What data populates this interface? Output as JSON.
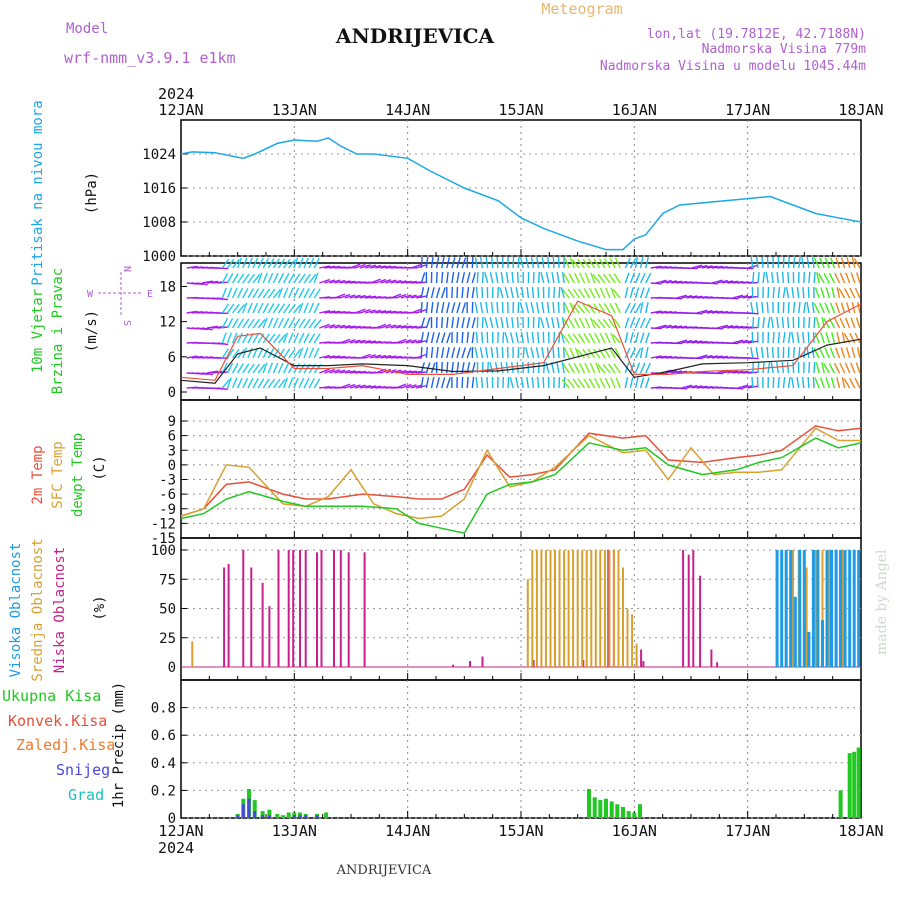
{
  "header": {
    "model_label": "Model",
    "model_name": "wrf-nmm_v3.9.1 e1km",
    "title": "ANDRIJEVICA",
    "subtitle": "Meteogram",
    "coords": "lon,lat (19.7812E, 42.7188N)",
    "elevation": "Nadmorska Visina 779m",
    "model_elevation": "Nadmorska Visina u modelu 1045.44m",
    "footer_station": "ANDRIJEVICA",
    "watermark": "made by Angel"
  },
  "time_axis": {
    "year": "2024",
    "ticks": [
      "12JAN",
      "13JAN",
      "14JAN",
      "15JAN",
      "16JAN",
      "17JAN",
      "18JAN"
    ]
  },
  "colors": {
    "pressure": "#1ea7e6",
    "wind_speed": "#222222",
    "wind_gust": "#e8503a",
    "temp_2m": "#e8503a",
    "temp_sfc": "#d9a030",
    "dewpoint": "#22c822",
    "cloud_high": "#1e9be6",
    "cloud_mid": "#d9a030",
    "cloud_low": "#c8208a",
    "precip_total": "#22c822",
    "precip_conv": "#e8503a",
    "precip_frz": "#f07a2a",
    "snow": "#4848e0",
    "graupel": "#20c0c0"
  },
  "chart_data": [
    {
      "type": "line",
      "panel": "pressure",
      "label_main": "Pritisak na nivou mora",
      "ylabel": "(hPa)",
      "ylim": [
        1000,
        1032
      ],
      "yticks": [
        1000,
        1008,
        1016,
        1024
      ],
      "grid": true,
      "series": [
        {
          "name": "Pritisak na nivou mora",
          "x": [
            0,
            0.1,
            0.3,
            0.55,
            0.65,
            0.85,
            1.0,
            1.2,
            1.3,
            1.4,
            1.55,
            1.7,
            2.0,
            2.2,
            2.5,
            2.8,
            3.0,
            3.2,
            3.5,
            3.75,
            3.9,
            4.0,
            4.1,
            4.25,
            4.4,
            4.6,
            4.8,
            5.0,
            5.2,
            5.4,
            5.6,
            5.8,
            6.0
          ],
          "y": [
            1024,
            1024.5,
            1024.3,
            1023,
            1024,
            1026.5,
            1027.3,
            1027,
            1027.8,
            1026,
            1024,
            1024,
            1023,
            1020,
            1016,
            1013,
            1009,
            1006.5,
            1003.5,
            1001.5,
            1001.5,
            1004,
            1005,
            1010,
            1012,
            1012.5,
            1013,
            1013.5,
            1014,
            1012,
            1010,
            1009,
            1008
          ]
        }
      ]
    },
    {
      "type": "line",
      "panel": "wind",
      "label_main": "10m Vjetar",
      "label_sub": "Brzina i Pravac",
      "ylabel": "(m/s)",
      "ylim": [
        0,
        22
      ],
      "yticks": [
        0,
        6,
        12,
        18
      ],
      "legend": "compass",
      "compass": {
        "n": "N",
        "e": "E",
        "s": "S",
        "w": "W"
      },
      "series": [
        {
          "name": "speed",
          "x": [
            0,
            0.3,
            0.5,
            0.7,
            1.0,
            1.3,
            1.6,
            2.0,
            2.4,
            2.8,
            3.2,
            3.5,
            3.8,
            4.0,
            4.3,
            4.6,
            5.0,
            5.4,
            5.7,
            6.0
          ],
          "y": [
            2,
            1.5,
            6.5,
            7.5,
            4.5,
            4.5,
            4.8,
            4.5,
            3.5,
            3.6,
            4.5,
            6,
            7.5,
            2.5,
            3.5,
            4.8,
            5,
            5.4,
            8,
            9
          ]
        },
        {
          "name": "gust",
          "x": [
            0,
            0.3,
            0.5,
            0.7,
            1.0,
            1.3,
            1.6,
            2.0,
            2.4,
            2.8,
            3.2,
            3.5,
            3.8,
            4.0,
            4.3,
            4.6,
            5.0,
            5.4,
            5.7,
            6.0
          ],
          "y": [
            2.5,
            2.0,
            9.5,
            10,
            4,
            4,
            4.5,
            3,
            3,
            4,
            5,
            15.5,
            13,
            3,
            3,
            3.5,
            3.8,
            4.5,
            12,
            15
          ]
        }
      ]
    },
    {
      "type": "line",
      "panel": "temperature",
      "label_2m": "2m Temp",
      "label_sfc": "SFC Temp",
      "label_dew": "dewpt Temp",
      "ylabel": "(C)",
      "ylim": [
        -15,
        9
      ],
      "yticks": [
        -15,
        -12,
        -9,
        -6,
        -3,
        0,
        3,
        6,
        9
      ],
      "grid": true,
      "series": [
        {
          "name": "2m Temp",
          "x": [
            0,
            0.2,
            0.4,
            0.6,
            0.9,
            1.1,
            1.3,
            1.6,
            1.9,
            2.1,
            2.3,
            2.5,
            2.7,
            2.9,
            3.1,
            3.3,
            3.6,
            3.9,
            4.1,
            4.3,
            4.6,
            4.9,
            5.1,
            5.3,
            5.6,
            5.8,
            6.0
          ],
          "y": [
            -10.5,
            -9,
            -4,
            -3.5,
            -6,
            -7,
            -7,
            -6,
            -6.5,
            -7,
            -7,
            -5,
            2,
            -2.5,
            -2,
            -1,
            6.5,
            5.5,
            6,
            1,
            0.5,
            1.5,
            2,
            3,
            8,
            7,
            7.5
          ]
        },
        {
          "name": "SFC Temp",
          "x": [
            0,
            0.2,
            0.4,
            0.6,
            0.9,
            1.1,
            1.3,
            1.5,
            1.7,
            1.9,
            2.1,
            2.3,
            2.5,
            2.7,
            2.9,
            3.1,
            3.3,
            3.6,
            3.9,
            4.1,
            4.3,
            4.5,
            4.7,
            4.9,
            5.1,
            5.3,
            5.6,
            5.8,
            6.0
          ],
          "y": [
            -10.5,
            -9,
            0,
            -0.5,
            -8,
            -8.5,
            -6.5,
            -1,
            -8,
            -10,
            -11,
            -10.5,
            -7,
            3,
            -4.5,
            -3.5,
            -0.5,
            6,
            2.5,
            3,
            -3,
            3.5,
            -2,
            -1.5,
            -1.5,
            -1,
            7.5,
            5,
            5
          ]
        },
        {
          "name": "dewpt Temp",
          "x": [
            0,
            0.2,
            0.4,
            0.6,
            0.9,
            1.1,
            1.3,
            1.6,
            1.9,
            2.1,
            2.3,
            2.5,
            2.7,
            2.9,
            3.1,
            3.3,
            3.6,
            3.9,
            4.1,
            4.3,
            4.6,
            4.9,
            5.1,
            5.3,
            5.6,
            5.8,
            6.0
          ],
          "y": [
            -11,
            -10,
            -7,
            -5.5,
            -7.5,
            -8.5,
            -8.5,
            -8.5,
            -9,
            -12,
            -13,
            -14,
            -6,
            -4,
            -3.5,
            -2,
            4.5,
            3,
            3.5,
            0,
            -2,
            -1,
            0.5,
            1.5,
            5.5,
            3.5,
            4.5
          ]
        }
      ]
    },
    {
      "type": "bar",
      "panel": "clouds",
      "label_high": "Visoka Oblacnost",
      "label_mid": "Srednja Oblacnost",
      "label_low": "Niska Oblacnost",
      "ylabel": "(%)",
      "ylim": [
        0,
        100
      ],
      "yticks": [
        0,
        25,
        50,
        75,
        100
      ],
      "grid": true,
      "series": [
        {
          "name": "Niska Oblacnost",
          "x": [
            0.38,
            0.42,
            0.55,
            0.62,
            0.72,
            0.78,
            0.86,
            0.95,
            0.99,
            1.05,
            1.1,
            1.2,
            1.24,
            1.35,
            1.41,
            1.48,
            1.62,
            2.4,
            2.55,
            2.66,
            3.11,
            3.3,
            3.55,
            3.77,
            3.82,
            4.02,
            4.06,
            4.08,
            4.43,
            4.48,
            4.52,
            4.58,
            4.68,
            4.73
          ],
          "y": [
            85,
            88,
            100,
            85,
            72,
            52,
            100,
            100,
            100,
            100,
            100,
            98,
            100,
            100,
            100,
            98,
            98,
            2,
            5,
            9,
            6,
            5,
            6,
            100,
            100,
            7,
            15,
            5,
            100,
            96,
            100,
            78,
            15,
            4
          ]
        },
        {
          "name": "Srednja Oblacnost",
          "x": [
            0.1,
            3.06,
            3.1,
            3.14,
            3.18,
            3.22,
            3.26,
            3.3,
            3.34,
            3.38,
            3.42,
            3.46,
            3.5,
            3.54,
            3.58,
            3.62,
            3.66,
            3.7,
            3.74,
            3.78,
            3.82,
            3.86,
            3.9,
            3.94,
            3.98,
            4.02,
            5.3,
            5.4,
            5.45,
            5.52,
            5.6,
            5.66,
            5.72,
            5.78,
            5.84
          ],
          "y": [
            22,
            75,
            100,
            100,
            100,
            100,
            100,
            100,
            100,
            100,
            100,
            100,
            100,
            100,
            100,
            100,
            100,
            100,
            100,
            100,
            100,
            100,
            85,
            50,
            45,
            20,
            100,
            100,
            100,
            85,
            100,
            100,
            100,
            100,
            100
          ]
        },
        {
          "name": "Visoka Oblacnost",
          "x": [
            5.26,
            5.3,
            5.34,
            5.38,
            5.42,
            5.46,
            5.5,
            5.54,
            5.58,
            5.62,
            5.66,
            5.7,
            5.74,
            5.78,
            5.82,
            5.86,
            5.9,
            5.94,
            5.98
          ],
          "y": [
            100,
            100,
            100,
            100,
            60,
            100,
            100,
            30,
            100,
            100,
            40,
            100,
            100,
            100,
            100,
            100,
            100,
            100,
            100
          ]
        }
      ]
    },
    {
      "type": "bar",
      "panel": "precip",
      "ylabel": "1hr Precip (mm)",
      "ylim": [
        0,
        1.0
      ],
      "yticks": [
        0,
        0.2,
        0.4,
        0.6,
        0.8
      ],
      "grid": true,
      "legend_labels": [
        "Ukupna Kisa",
        "Konvek.Kisa",
        "Zaledj.Kisa",
        "Snijeg",
        "Grad"
      ],
      "series": [
        {
          "name": "Ukupna Kisa",
          "x": [
            0.5,
            0.55,
            0.6,
            0.65,
            0.72,
            0.78,
            0.85,
            0.9,
            0.95,
            1.0,
            1.05,
            1.1,
            1.2,
            1.28,
            3.6,
            3.65,
            3.7,
            3.75,
            3.8,
            3.85,
            3.9,
            3.95,
            4.0,
            4.05,
            5.82,
            5.9,
            5.94,
            5.98
          ],
          "y": [
            0.03,
            0.14,
            0.21,
            0.13,
            0.05,
            0.06,
            0.03,
            0.02,
            0.04,
            0.04,
            0.04,
            0.03,
            0.03,
            0.04,
            0.21,
            0.15,
            0.13,
            0.14,
            0.12,
            0.1,
            0.08,
            0.05,
            0.04,
            0.1,
            0.2,
            0.47,
            0.48,
            0.51
          ]
        },
        {
          "name": "Snijeg",
          "x": [
            0.5,
            0.55,
            0.6,
            0.65,
            0.72,
            0.78,
            1.0,
            1.05,
            1.1,
            1.2
          ],
          "y": [
            0.02,
            0.1,
            0.14,
            0.05,
            0.02,
            0.02,
            0.02,
            0.02,
            0.02,
            0.02
          ]
        }
      ]
    }
  ]
}
